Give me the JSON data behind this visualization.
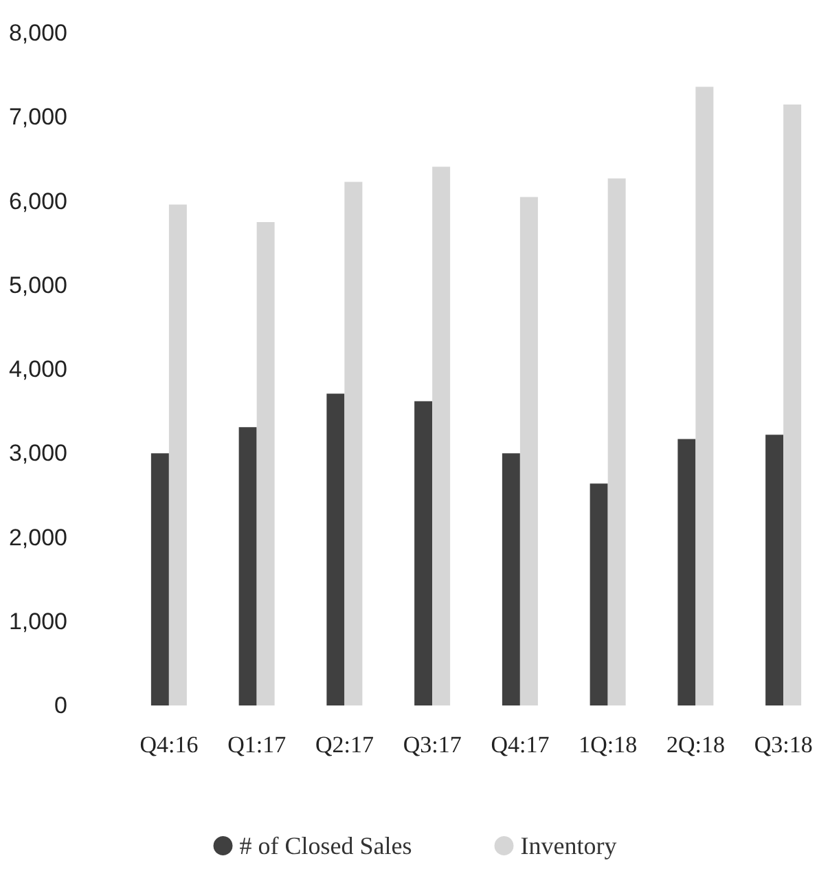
{
  "chart_data": {
    "type": "bar",
    "categories": [
      "Q4:16",
      "Q1:17",
      "Q2:17",
      "Q3:17",
      "Q4:17",
      "1Q:18",
      "2Q:18",
      "Q3:18"
    ],
    "series": [
      {
        "name": "# of Closed Sales",
        "color": "#404040",
        "values": [
          3000,
          3310,
          3710,
          3620,
          3000,
          2640,
          3170,
          3220
        ]
      },
      {
        "name": "Inventory",
        "color": "#d6d6d6",
        "values": [
          5960,
          5750,
          6230,
          6410,
          6050,
          6270,
          7360,
          7150
        ]
      }
    ],
    "ylim": [
      0,
      8000
    ],
    "yticks": [
      0,
      {
        "value": 1000,
        "label": "1,000"
      },
      {
        "value": 2000,
        "label": "2,000"
      },
      {
        "value": 3000,
        "label": "3,000"
      },
      {
        "value": 4000,
        "label": "4,000"
      },
      {
        "value": 5000,
        "label": "5,000"
      },
      {
        "value": 6000,
        "label": "6,000"
      },
      {
        "value": 7000,
        "label": "7,000"
      },
      {
        "value": 8000,
        "label": "8,000"
      }
    ],
    "grid": false,
    "legend": "bottom"
  }
}
